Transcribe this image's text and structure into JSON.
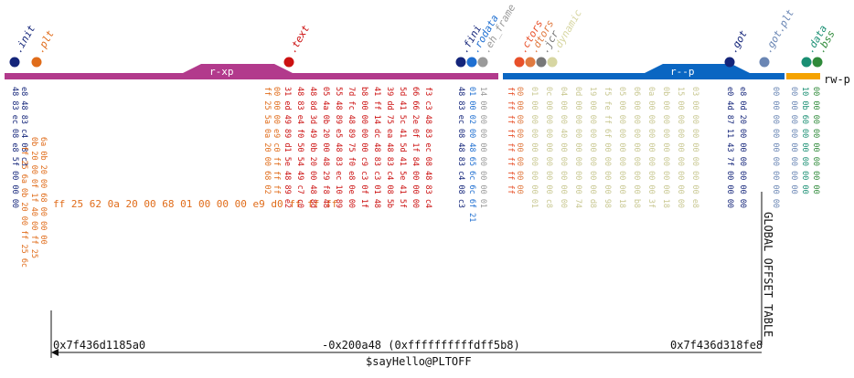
{
  "segments": [
    {
      "perm": "r-xp",
      "color": "#b23a8c"
    },
    {
      "perm": "r--p",
      "color": "#0a66c2"
    },
    {
      "perm": "rw-p",
      "color": "#f5a300"
    }
  ],
  "sections": [
    {
      "name": ".init",
      "color": "#14257a"
    },
    {
      "name": ".plt",
      "color": "#e06c1a"
    },
    {
      "name": ".text",
      "color": "#cc1111"
    },
    {
      "name": ".fini",
      "color": "#14257a"
    },
    {
      "name": ".rodata",
      "color": "#1f6fd1"
    },
    {
      "name": ".eh_frame",
      "color": "#9a9a9a"
    },
    {
      "name": ".ctors",
      "color": "#e8502a"
    },
    {
      "name": ".dtors",
      "color": "#e07a40"
    },
    {
      "name": ".jcr",
      "color": "#777777"
    },
    {
      "name": ".dynamic",
      "color": "#d7d6a2"
    },
    {
      "name": ".got",
      "color": "#14257a"
    },
    {
      "name": ".got.plt",
      "color": "#6a86b4"
    },
    {
      "name": ".data",
      "color": "#1a8f73"
    },
    {
      "name": ".bss",
      "color": "#2f8a3a"
    }
  ],
  "hex": {
    "init": [
      "48 83 ec 08 e8 5f 00 00 00",
      "e8 48 83 c4 08 c3"
    ],
    "plt": [
      "ff 25 6a 0b 20 00 ff 25 6c",
      "0b 20 00 0f 1f 40 00 ff 25",
      "6a 0b 20 00 68 00 00 00"
    ],
    "plt_main": "ff 25 62 0a 20 00 68 01 00 00 00 e9 d0 ff ff ff",
    "plt_right": [
      "ff 25 5a 0a 20 00 68 02",
      "00 00 00 e9 c0 ff ff ff"
    ],
    "text": [
      "31 ed 49 89 d1 5e 48 89 e2",
      "48 83 e4 f0 50 54 49 c7 c0",
      "48 8d 3d 49 0b 20 00 48 8d",
      "05 4a 0b 20 00 48 29 f8 48",
      "55 48 89 e5 48 83 ec 10 89",
      "7d fc 48 89 75 f0 e8 0e 00",
      "b8 00 00 00 00 c9 c3 0f 1f",
      "41 ff 14 dc 48 83 c3 01 48",
      "39 dd 75 ea 48 83 c4 08 5b",
      "5d 41 5c 41 5d 41 5e 41 5f",
      "66 66 2e 0f 1f 84 00 00 00",
      "f3 c3 48 83 ec 08 48 83 c4"
    ],
    "fini": "48 83 ec 08 48 83 c4 08 c3",
    "rodata": "01 00 02 00 48 65 6c 6c 6f 21",
    "eh_frame": "14 00 00 00 00 00 00 00 01",
    "ctors": [
      "ff ff ff ff ff ff ff ff",
      "00 00 00 00 00 00 00 00"
    ],
    "dynamic": [
      "01 00 00 00 00 00 00 00 01",
      "0c 00 00 00 00 00 00 00 c8",
      "04 00 00 40 00 00 00 00 00",
      "0d 00 00 00 00 00 00 00 74",
      "19 00 00 00 00 00 00 00 d8",
      "f5 fe ff 6f 00 00 00 00 98",
      "05 00 00 00 00 00 00 00 18",
      "06 00 00 00 00 00 00 00 b8",
      "0a 00 00 00 00 00 00 00 3f",
      "0b 00 00 00 00 00 00 00 18",
      "15 00 00 00 00 00 00 00 00",
      "03 00 00 00 00 00 00 00 e8"
    ],
    "got": "e0 4d 87 11 43 7f 00 00 00",
    "got_plt": [
      "e8 0d 20 00 00 00 00 00 00",
      "00 00 00 00 00 00 00 00 00"
    ],
    "data": [
      "00 00 00 00 00 00 00 00",
      "10 0b 60 00 00 00 00 00"
    ],
    "bss": "00 00 00 00 00 00 00 00"
  },
  "annotation": {
    "start_addr": "0x7f436d1185a0",
    "offset": "-0x200a48 (0xffffffffffdff5b8)",
    "end_addr": "0x7f436d318fe8",
    "target": "GLOBAL_OFFSET_TABLE",
    "symbol": "$sayHello@PLTOFF"
  }
}
